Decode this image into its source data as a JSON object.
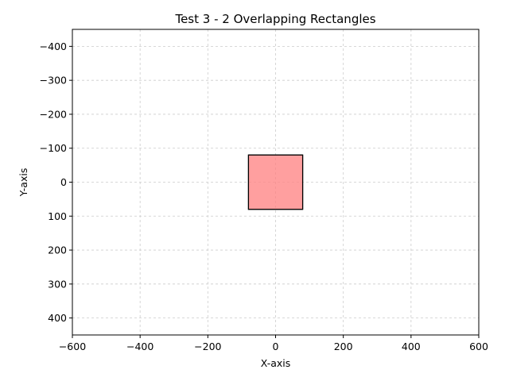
{
  "chart_data": {
    "type": "rectangles",
    "title": "Test 3 - 2 Overlapping Rectangles",
    "xlabel": "X-axis",
    "ylabel": "Y-axis",
    "xlim": [
      -600,
      600
    ],
    "ylim": [
      450,
      -450
    ],
    "y_inverted": true,
    "grid": true,
    "xticks": [
      -600,
      -400,
      -200,
      0,
      200,
      400,
      600
    ],
    "yticks": [
      -400,
      -300,
      -200,
      -100,
      0,
      100,
      200,
      300,
      400
    ],
    "rectangles": [
      {
        "x": -80,
        "y": -80,
        "width": 160,
        "height": 160,
        "fill": "#ff7f7f",
        "edge": "#000000",
        "alpha": 0.5
      },
      {
        "x": -80,
        "y": -80,
        "width": 160,
        "height": 160,
        "fill": "#ff7f7f",
        "edge": "#000000",
        "alpha": 0.5
      }
    ]
  }
}
